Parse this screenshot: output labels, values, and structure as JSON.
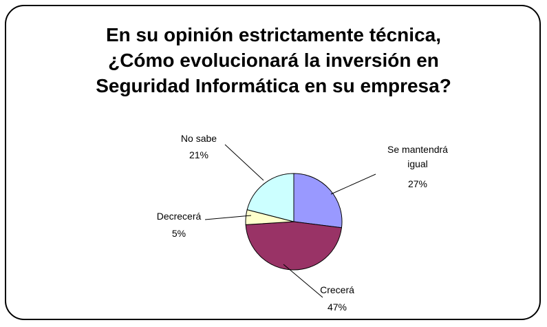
{
  "chart_data": {
    "type": "pie",
    "title_lines": [
      "En su opinión estrictamente técnica,",
      "¿Cómo evolucionará la inversión en",
      "Seguridad Informática en su empresa?"
    ],
    "slices": [
      {
        "label_lines": [
          "Se mantendrá",
          "igual"
        ],
        "value": 27,
        "value_label": "27%",
        "color": "#9999ff"
      },
      {
        "label_lines": [
          "Crecerá"
        ],
        "value": 47,
        "value_label": "47%",
        "color": "#993366"
      },
      {
        "label_lines": [
          "Decrecerá"
        ],
        "value": 5,
        "value_label": "5%",
        "color": "#ffffcc"
      },
      {
        "label_lines": [
          "No sabe"
        ],
        "value": 21,
        "value_label": "21%",
        "color": "#ccffff"
      }
    ],
    "start_angle_deg": 0,
    "direction": "clockwise"
  }
}
